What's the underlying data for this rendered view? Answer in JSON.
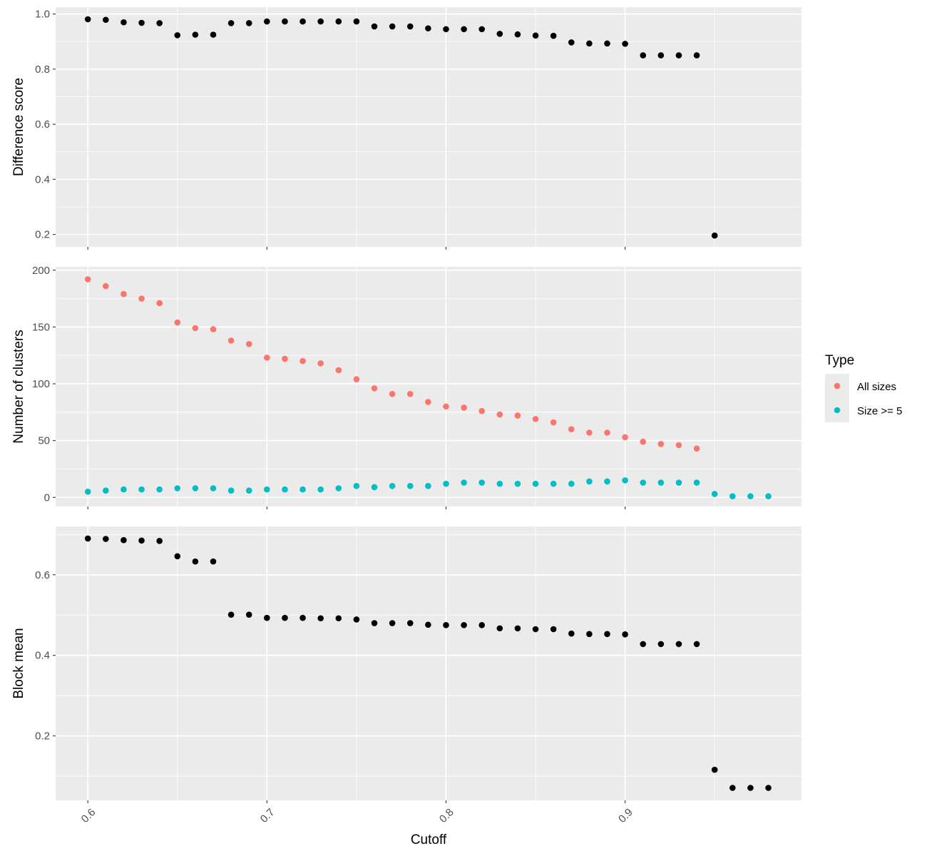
{
  "chart_data": {
    "type": "scatter",
    "xlabel": "Cutoff",
    "x_ticks": [
      "0.6",
      "0.7",
      "0.8",
      "0.9"
    ],
    "x_tick_values": [
      0.6,
      0.7,
      0.8,
      0.9
    ],
    "xlim": [
      0.582,
      0.9985
    ],
    "grid": true,
    "legend_position": "right",
    "legend": {
      "title": "Type",
      "items": [
        {
          "label": "All sizes",
          "color": "#F8766D"
        },
        {
          "label": "Size >= 5",
          "color": "#00BFC4"
        }
      ]
    },
    "panels": [
      {
        "ylabel": "Difference score",
        "ylim": [
          0.155,
          1.025
        ],
        "y_ticks": [
          "0.2",
          "0.4",
          "0.6",
          "0.8",
          "1.0"
        ],
        "y_tick_values": [
          0.2,
          0.4,
          0.6,
          0.8,
          1.0
        ],
        "series": [
          {
            "color": "#000000",
            "x": [
              0.6,
              0.61,
              0.62,
              0.63,
              0.64,
              0.65,
              0.66,
              0.67,
              0.68,
              0.69,
              0.7,
              0.71,
              0.72,
              0.73,
              0.74,
              0.75,
              0.76,
              0.77,
              0.78,
              0.79,
              0.8,
              0.81,
              0.82,
              0.83,
              0.84,
              0.85,
              0.86,
              0.87,
              0.88,
              0.89,
              0.9,
              0.91,
              0.92,
              0.93,
              0.94,
              0.95
            ],
            "y": [
              0.981,
              0.979,
              0.97,
              0.968,
              0.967,
              0.923,
              0.925,
              0.925,
              0.967,
              0.967,
              0.973,
              0.973,
              0.973,
              0.973,
              0.973,
              0.973,
              0.955,
              0.955,
              0.955,
              0.948,
              0.945,
              0.945,
              0.945,
              0.928,
              0.926,
              0.922,
              0.921,
              0.897,
              0.893,
              0.893,
              0.892,
              0.85,
              0.85,
              0.85,
              0.85,
              0.196
            ]
          }
        ]
      },
      {
        "ylabel": "Number of clusters",
        "ylim": [
          -8,
          203
        ],
        "y_ticks": [
          "0",
          "50",
          "100",
          "150",
          "200"
        ],
        "y_tick_values": [
          0,
          50,
          100,
          150,
          200
        ],
        "series": [
          {
            "name": "All sizes",
            "color": "#F8766D",
            "x": [
              0.6,
              0.61,
              0.62,
              0.63,
              0.64,
              0.65,
              0.66,
              0.67,
              0.68,
              0.69,
              0.7,
              0.71,
              0.72,
              0.73,
              0.74,
              0.75,
              0.76,
              0.77,
              0.78,
              0.79,
              0.8,
              0.81,
              0.82,
              0.83,
              0.84,
              0.85,
              0.86,
              0.87,
              0.88,
              0.89,
              0.9,
              0.91,
              0.92,
              0.93,
              0.94
            ],
            "y": [
              192,
              186,
              179,
              175,
              171,
              154,
              149,
              148,
              138,
              135,
              123,
              122,
              120,
              118,
              112,
              104,
              96,
              91,
              91,
              84,
              80,
              79,
              76,
              73,
              72,
              69,
              66,
              60,
              57,
              57,
              53,
              49,
              47,
              46,
              43
            ]
          },
          {
            "name": "Size >= 5",
            "color": "#00BFC4",
            "x": [
              0.6,
              0.61,
              0.62,
              0.63,
              0.64,
              0.65,
              0.66,
              0.67,
              0.68,
              0.69,
              0.7,
              0.71,
              0.72,
              0.73,
              0.74,
              0.75,
              0.76,
              0.77,
              0.78,
              0.79,
              0.8,
              0.81,
              0.82,
              0.83,
              0.84,
              0.85,
              0.86,
              0.87,
              0.88,
              0.89,
              0.9,
              0.91,
              0.92,
              0.93,
              0.94,
              0.95,
              0.96,
              0.97,
              0.98
            ],
            "y": [
              5,
              6,
              7,
              7,
              7,
              8,
              8,
              8,
              6,
              6,
              7,
              7,
              7,
              7,
              8,
              10,
              9,
              10,
              10,
              10,
              12,
              13,
              13,
              12,
              12,
              12,
              12,
              12,
              14,
              14,
              15,
              13,
              13,
              13,
              13,
              3,
              1,
              1,
              1
            ]
          }
        ]
      },
      {
        "ylabel": "Block mean",
        "ylim": [
          0.04,
          0.72
        ],
        "y_ticks": [
          "0.2",
          "0.4",
          "0.6"
        ],
        "y_tick_values": [
          0.2,
          0.4,
          0.6
        ],
        "series": [
          {
            "color": "#000000",
            "x": [
              0.6,
              0.61,
              0.62,
              0.63,
              0.64,
              0.65,
              0.66,
              0.67,
              0.68,
              0.69,
              0.7,
              0.71,
              0.72,
              0.73,
              0.74,
              0.75,
              0.76,
              0.77,
              0.78,
              0.79,
              0.8,
              0.81,
              0.82,
              0.83,
              0.84,
              0.85,
              0.86,
              0.87,
              0.88,
              0.89,
              0.9,
              0.91,
              0.92,
              0.93,
              0.94,
              0.95,
              0.96,
              0.97,
              0.98
            ],
            "y": [
              0.69,
              0.689,
              0.686,
              0.685,
              0.684,
              0.646,
              0.633,
              0.633,
              0.501,
              0.501,
              0.493,
              0.493,
              0.493,
              0.492,
              0.492,
              0.489,
              0.48,
              0.48,
              0.48,
              0.476,
              0.475,
              0.475,
              0.475,
              0.467,
              0.467,
              0.465,
              0.465,
              0.454,
              0.453,
              0.453,
              0.452,
              0.428,
              0.428,
              0.428,
              0.428,
              0.116,
              0.071,
              0.071,
              0.071
            ]
          }
        ]
      }
    ]
  }
}
